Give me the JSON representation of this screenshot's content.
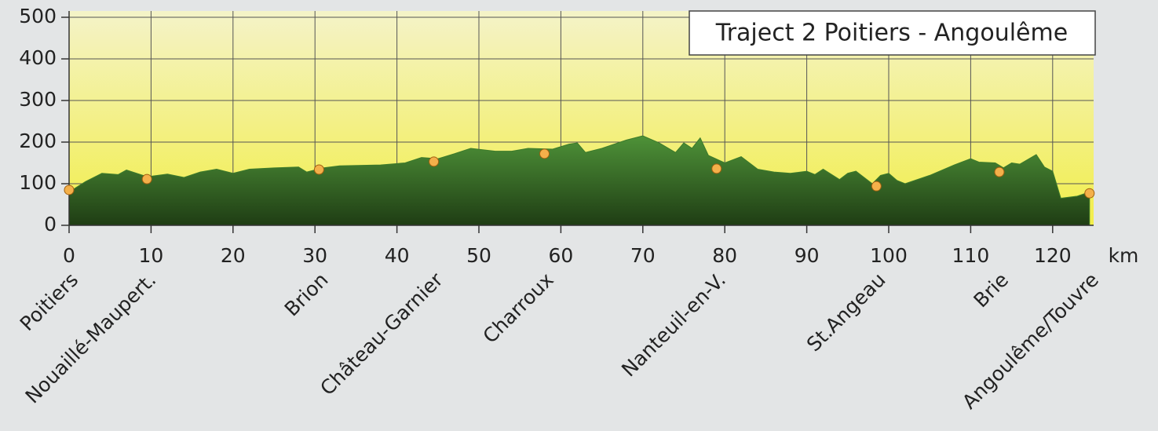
{
  "chart_data": {
    "type": "area",
    "title": "Traject 2 Poitiers - Angoulême",
    "xlabel": "km",
    "xlim": [
      0,
      125
    ],
    "ylim": [
      0,
      500
    ],
    "xticks": [
      0,
      10,
      20,
      30,
      40,
      50,
      60,
      70,
      80,
      90,
      100,
      110,
      120
    ],
    "yticks": [
      0,
      100,
      200,
      300,
      400,
      500
    ],
    "grid": true,
    "color": "#3c7a2a",
    "x": [
      0,
      2,
      4,
      6,
      7,
      9,
      10,
      12,
      14,
      16,
      18,
      20,
      22,
      25,
      28,
      29,
      31,
      33,
      38,
      41,
      43,
      45,
      47,
      49,
      52,
      54,
      56,
      59,
      61,
      62,
      63,
      65,
      68,
      70,
      72,
      74,
      75,
      76,
      77,
      78,
      80,
      82,
      84,
      86,
      88,
      90,
      91,
      92,
      94,
      95,
      96,
      98,
      99,
      100,
      101,
      102,
      105,
      108,
      110,
      111,
      113,
      114,
      115,
      116,
      118,
      119,
      120,
      121,
      123,
      124.5
    ],
    "values": [
      80,
      105,
      125,
      122,
      133,
      120,
      118,
      123,
      115,
      128,
      135,
      125,
      135,
      138,
      140,
      128,
      138,
      143,
      145,
      150,
      163,
      160,
      172,
      185,
      178,
      178,
      185,
      183,
      195,
      198,
      175,
      185,
      205,
      215,
      198,
      175,
      198,
      185,
      210,
      168,
      150,
      165,
      135,
      128,
      125,
      130,
      122,
      135,
      110,
      125,
      130,
      100,
      120,
      125,
      108,
      100,
      120,
      145,
      160,
      152,
      150,
      138,
      150,
      147,
      170,
      140,
      130,
      65,
      70,
      80
    ],
    "towns": [
      {
        "name": "Poitiers",
        "km": 0,
        "elevation": 85
      },
      {
        "name": "Nouaillé-Maupert.",
        "km": 9.5,
        "elevation": 111
      },
      {
        "name": "Brion",
        "km": 30.5,
        "elevation": 134
      },
      {
        "name": "Château-Garnier",
        "km": 44.5,
        "elevation": 153
      },
      {
        "name": "Charroux",
        "km": 58,
        "elevation": 172
      },
      {
        "name": "Nanteuil-en-V.",
        "km": 79,
        "elevation": 136
      },
      {
        "name": "St.Angeau",
        "km": 98.5,
        "elevation": 94
      },
      {
        "name": "Brie",
        "km": 113.5,
        "elevation": 128
      },
      {
        "name": "Angoulême/Touvre",
        "km": 124.5,
        "elevation": 77
      }
    ]
  }
}
